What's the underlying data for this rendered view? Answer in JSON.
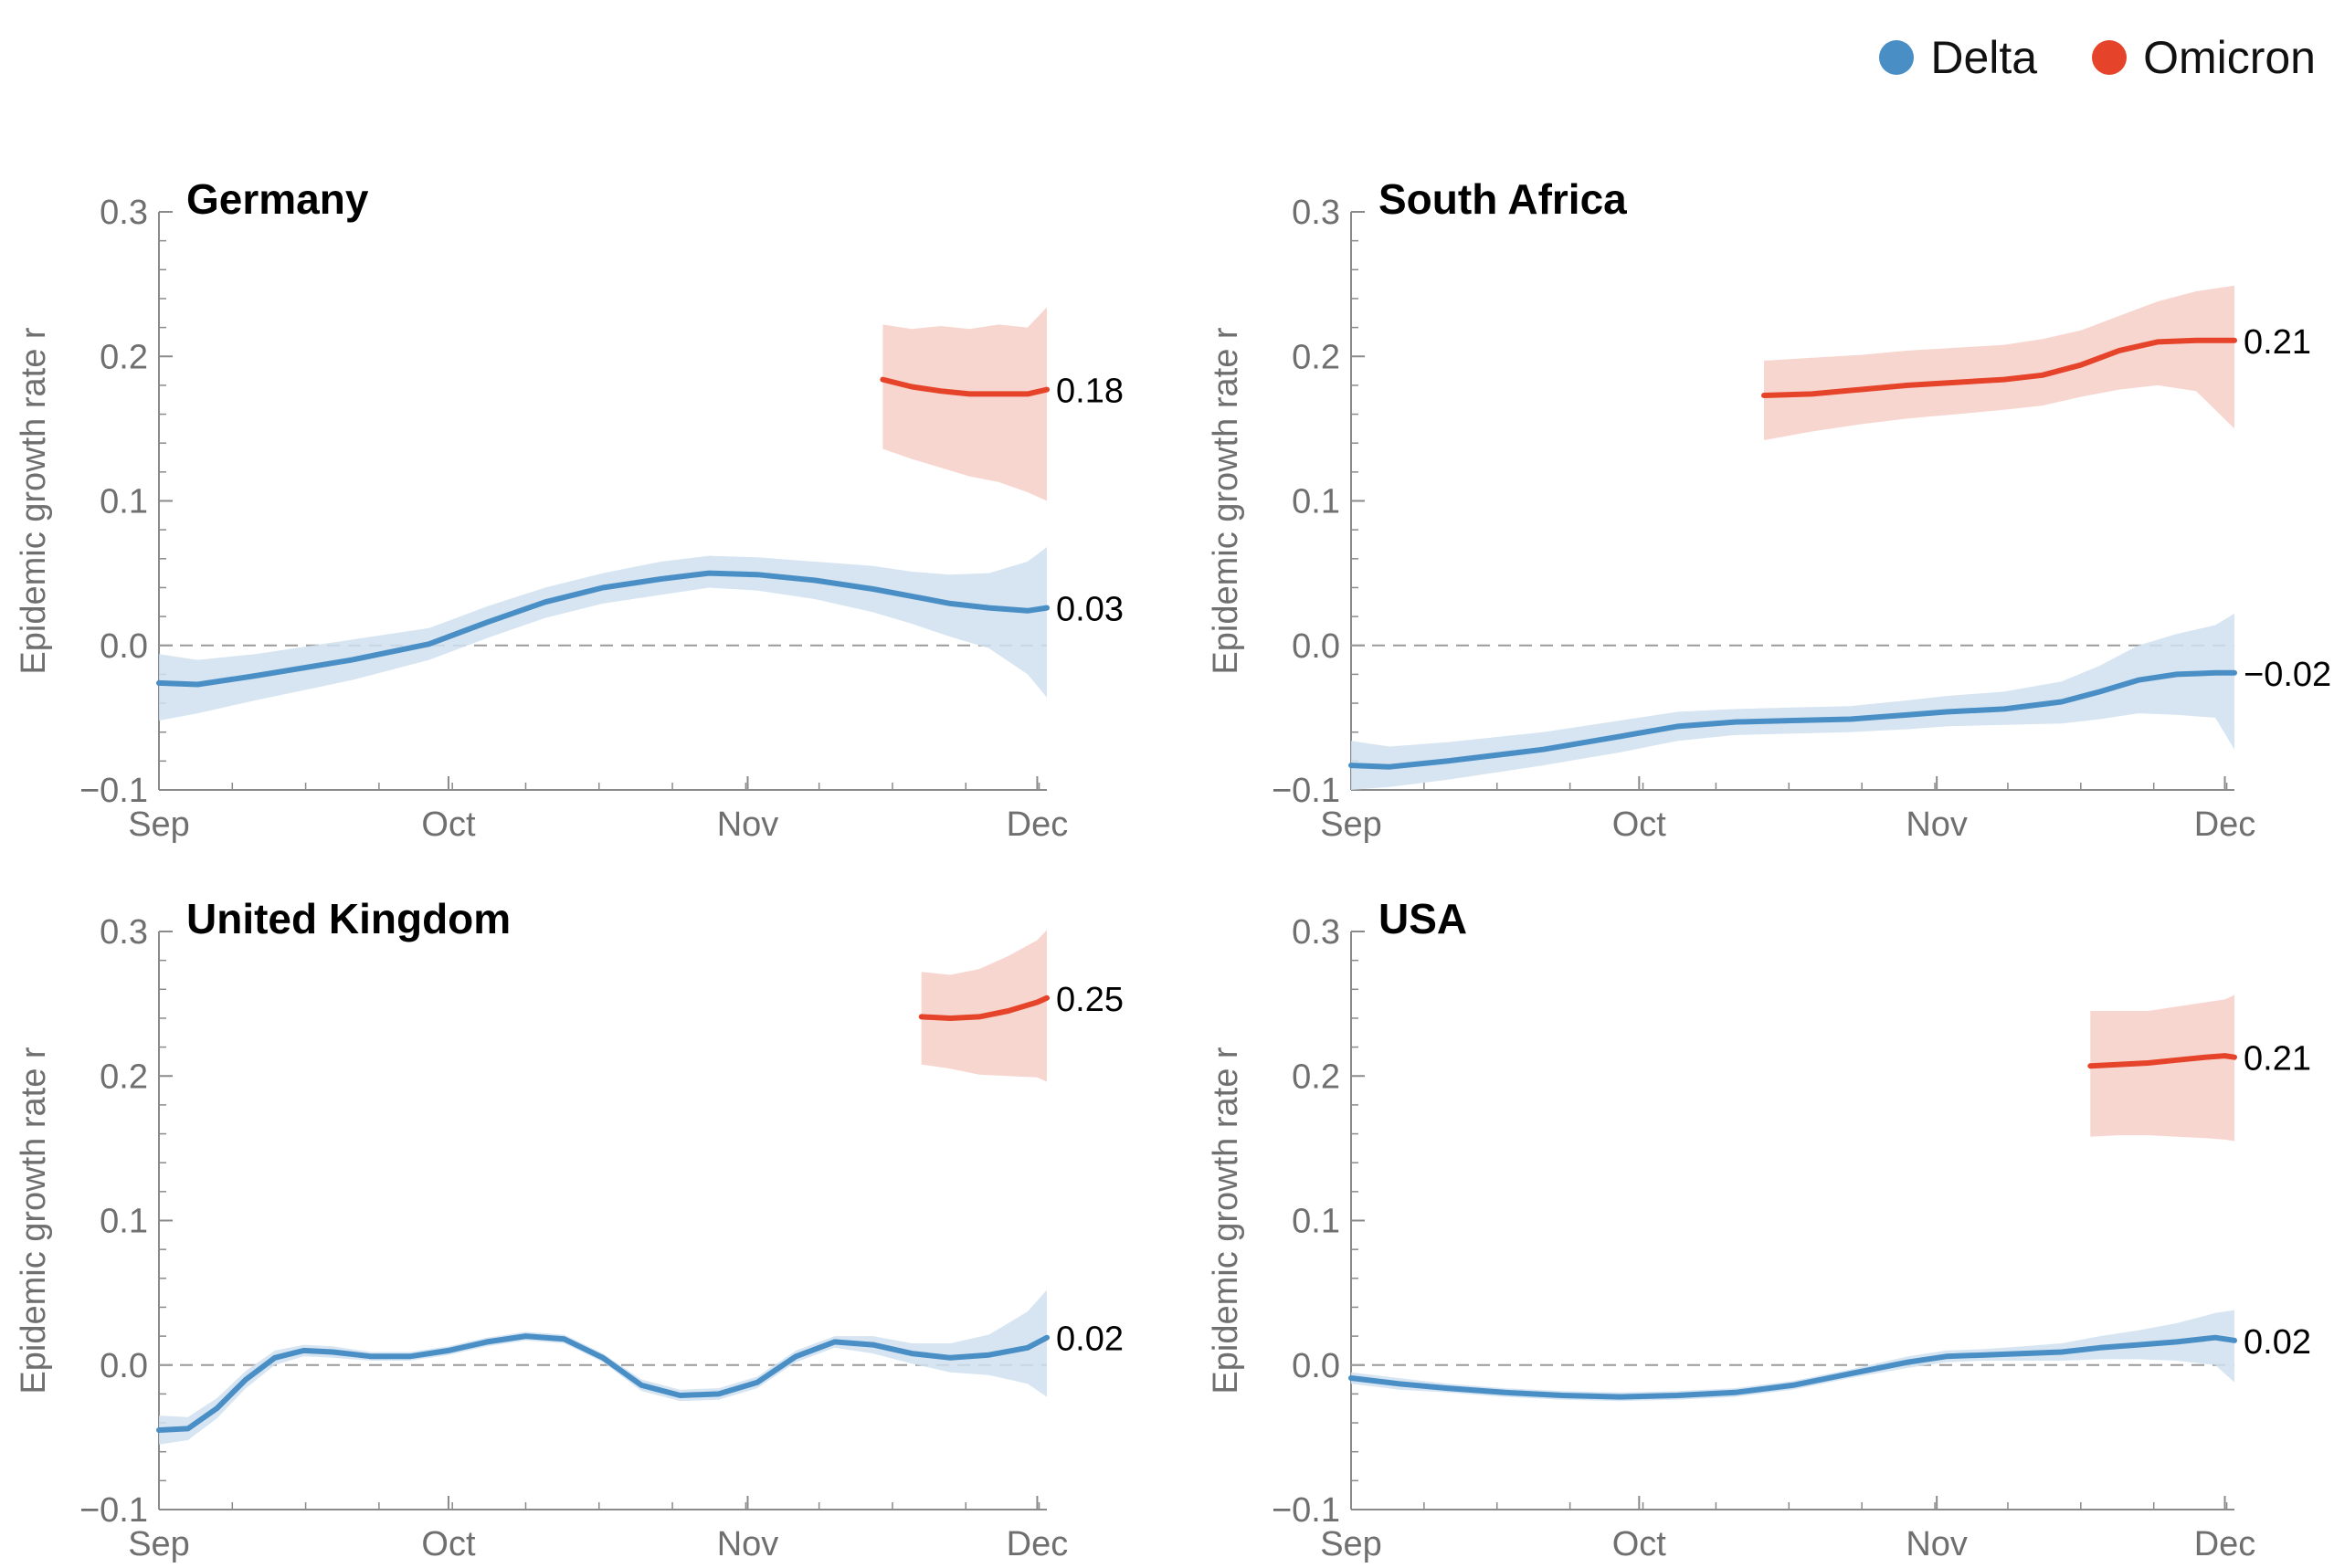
{
  "legend": {
    "items": [
      {
        "label": "Delta",
        "color": "#4a8ec6"
      },
      {
        "label": "Omicron",
        "color": "#e5432a"
      }
    ]
  },
  "chart_data": [
    {
      "type": "line",
      "title": "Germany",
      "xlabel": "",
      "ylabel": "Epidemic growth rate r",
      "x_ticks": [
        "Sep",
        "Oct",
        "Nov",
        "Dec"
      ],
      "x_tick_days": [
        0,
        30,
        61,
        91
      ],
      "xlim": [
        0,
        92
      ],
      "ylim": [
        -0.1,
        0.3
      ],
      "y_ticks": [
        -0.1,
        0.0,
        0.1,
        0.2,
        0.3
      ],
      "y_tick_labels": [
        "−0.1",
        "0.0",
        "0.1",
        "0.2",
        "0.3"
      ],
      "reference_line": 0.0,
      "grid": false,
      "series": [
        {
          "name": "Delta",
          "color": "#4a8ec6",
          "x": [
            0,
            4,
            10,
            20,
            28,
            34,
            40,
            46,
            52,
            57,
            62,
            68,
            74,
            78,
            82,
            86,
            90,
            92
          ],
          "y": [
            -0.026,
            -0.027,
            -0.021,
            -0.01,
            0.001,
            0.016,
            0.03,
            0.04,
            0.046,
            0.05,
            0.049,
            0.045,
            0.039,
            0.034,
            0.029,
            0.026,
            0.024,
            0.026
          ],
          "lower": [
            -0.052,
            -0.047,
            -0.038,
            -0.024,
            -0.01,
            0.005,
            0.019,
            0.029,
            0.035,
            0.04,
            0.038,
            0.032,
            0.023,
            0.015,
            0.006,
            -0.002,
            -0.02,
            -0.036
          ],
          "upper": [
            -0.006,
            -0.01,
            -0.006,
            0.004,
            0.012,
            0.027,
            0.04,
            0.05,
            0.058,
            0.062,
            0.061,
            0.058,
            0.055,
            0.051,
            0.049,
            0.05,
            0.058,
            0.068
          ],
          "end_label": "0.03"
        },
        {
          "name": "Omicron",
          "color": "#e5432a",
          "x": [
            75,
            78,
            81,
            84,
            87,
            90,
            92
          ],
          "y": [
            0.184,
            0.179,
            0.176,
            0.174,
            0.174,
            0.174,
            0.177
          ],
          "lower": [
            0.136,
            0.129,
            0.123,
            0.117,
            0.113,
            0.106,
            0.1
          ],
          "upper": [
            0.222,
            0.219,
            0.221,
            0.219,
            0.222,
            0.22,
            0.234
          ],
          "end_label": "0.18"
        }
      ]
    },
    {
      "type": "line",
      "title": "South Africa",
      "xlabel": "",
      "ylabel": "Epidemic growth rate r",
      "x_ticks": [
        "Sep",
        "Oct",
        "Nov",
        "Dec"
      ],
      "x_tick_days": [
        0,
        30,
        61,
        91
      ],
      "xlim": [
        0,
        92
      ],
      "ylim": [
        -0.1,
        0.3
      ],
      "y_ticks": [
        -0.1,
        0.0,
        0.1,
        0.2,
        0.3
      ],
      "y_tick_labels": [
        "−0.1",
        "0.0",
        "0.1",
        "0.2",
        "0.3"
      ],
      "reference_line": 0.0,
      "grid": false,
      "series": [
        {
          "name": "Delta",
          "color": "#4a8ec6",
          "x": [
            0,
            4,
            10,
            20,
            28,
            34,
            40,
            46,
            52,
            58,
            62,
            68,
            74,
            78,
            82,
            86,
            90,
            92
          ],
          "y": [
            -0.083,
            -0.084,
            -0.08,
            -0.072,
            -0.063,
            -0.056,
            -0.053,
            -0.052,
            -0.051,
            -0.048,
            -0.046,
            -0.044,
            -0.039,
            -0.032,
            -0.024,
            -0.02,
            -0.019,
            -0.019
          ],
          "lower": [
            -0.1,
            -0.098,
            -0.093,
            -0.083,
            -0.074,
            -0.066,
            -0.062,
            -0.061,
            -0.06,
            -0.058,
            -0.056,
            -0.055,
            -0.054,
            -0.051,
            -0.047,
            -0.048,
            -0.05,
            -0.072
          ],
          "upper": [
            -0.066,
            -0.07,
            -0.067,
            -0.06,
            -0.052,
            -0.046,
            -0.044,
            -0.043,
            -0.042,
            -0.038,
            -0.035,
            -0.032,
            -0.025,
            -0.014,
            0.0,
            0.008,
            0.014,
            0.022
          ],
          "end_label": "−0.02"
        },
        {
          "name": "Omicron",
          "color": "#e5432a",
          "x": [
            43,
            48,
            53,
            58,
            63,
            68,
            72,
            76,
            80,
            84,
            88,
            92
          ],
          "y": [
            0.173,
            0.174,
            0.177,
            0.18,
            0.182,
            0.184,
            0.187,
            0.194,
            0.204,
            0.21,
            0.211,
            0.211
          ],
          "lower": [
            0.142,
            0.148,
            0.153,
            0.157,
            0.16,
            0.163,
            0.166,
            0.172,
            0.177,
            0.18,
            0.176,
            0.15
          ],
          "upper": [
            0.197,
            0.199,
            0.201,
            0.204,
            0.206,
            0.208,
            0.212,
            0.218,
            0.228,
            0.238,
            0.245,
            0.249
          ],
          "end_label": "0.21"
        }
      ]
    },
    {
      "type": "line",
      "title": "United Kingdom",
      "xlabel": "",
      "ylabel": "Epidemic growth rate r",
      "x_ticks": [
        "Sep",
        "Oct",
        "Nov",
        "Dec"
      ],
      "x_tick_days": [
        0,
        30,
        61,
        91
      ],
      "xlim": [
        0,
        92
      ],
      "ylim": [
        -0.1,
        0.3
      ],
      "y_ticks": [
        -0.1,
        0.0,
        0.1,
        0.2,
        0.3
      ],
      "y_tick_labels": [
        "−0.1",
        "0.0",
        "0.1",
        "0.2",
        "0.3"
      ],
      "reference_line": 0.0,
      "grid": false,
      "series": [
        {
          "name": "Delta",
          "color": "#4a8ec6",
          "x": [
            0,
            3,
            6,
            9,
            12,
            15,
            18,
            22,
            26,
            30,
            34,
            38,
            42,
            46,
            50,
            54,
            58,
            62,
            66,
            70,
            74,
            78,
            82,
            86,
            90,
            92
          ],
          "y": [
            -0.045,
            -0.044,
            -0.03,
            -0.01,
            0.005,
            0.01,
            0.009,
            0.006,
            0.006,
            0.01,
            0.016,
            0.02,
            0.018,
            0.005,
            -0.014,
            -0.021,
            -0.02,
            -0.012,
            0.006,
            0.016,
            0.014,
            0.008,
            0.005,
            0.007,
            0.012,
            0.019
          ],
          "lower": [
            -0.055,
            -0.052,
            -0.037,
            -0.016,
            0.0,
            0.006,
            0.005,
            0.003,
            0.003,
            0.007,
            0.013,
            0.017,
            0.015,
            0.002,
            -0.018,
            -0.025,
            -0.024,
            -0.016,
            0.002,
            0.012,
            0.008,
            0.001,
            -0.005,
            -0.007,
            -0.013,
            -0.022
          ],
          "upper": [
            -0.035,
            -0.036,
            -0.023,
            -0.004,
            0.01,
            0.014,
            0.013,
            0.009,
            0.009,
            0.013,
            0.019,
            0.023,
            0.021,
            0.008,
            -0.01,
            -0.017,
            -0.016,
            -0.008,
            0.01,
            0.02,
            0.02,
            0.015,
            0.015,
            0.021,
            0.037,
            0.052
          ],
          "end_label": "0.02"
        },
        {
          "name": "Omicron",
          "color": "#e5432a",
          "x": [
            79,
            82,
            85,
            88,
            91,
            92
          ],
          "y": [
            0.241,
            0.24,
            0.241,
            0.245,
            0.251,
            0.254
          ],
          "lower": [
            0.208,
            0.205,
            0.201,
            0.2,
            0.199,
            0.196
          ],
          "upper": [
            0.272,
            0.27,
            0.274,
            0.283,
            0.294,
            0.301
          ],
          "end_label": "0.25"
        }
      ]
    },
    {
      "type": "line",
      "title": "USA",
      "xlabel": "",
      "ylabel": "Epidemic growth rate r",
      "x_ticks": [
        "Sep",
        "Oct",
        "Nov",
        "Dec"
      ],
      "x_tick_days": [
        0,
        30,
        61,
        91
      ],
      "xlim": [
        0,
        92
      ],
      "ylim": [
        -0.1,
        0.3
      ],
      "y_ticks": [
        -0.1,
        0.0,
        0.1,
        0.2,
        0.3
      ],
      "y_tick_labels": [
        "−0.1",
        "0.0",
        "0.1",
        "0.2",
        "0.3"
      ],
      "reference_line": 0.0,
      "grid": false,
      "series": [
        {
          "name": "Delta",
          "color": "#4a8ec6",
          "x": [
            0,
            5,
            10,
            16,
            22,
            28,
            34,
            40,
            46,
            52,
            58,
            62,
            66,
            70,
            74,
            78,
            82,
            86,
            90,
            92
          ],
          "y": [
            -0.009,
            -0.013,
            -0.016,
            -0.019,
            -0.021,
            -0.022,
            -0.021,
            -0.019,
            -0.014,
            -0.006,
            0.002,
            0.006,
            0.007,
            0.008,
            0.009,
            0.012,
            0.014,
            0.016,
            0.019,
            0.017
          ],
          "lower": [
            -0.013,
            -0.017,
            -0.019,
            -0.022,
            -0.024,
            -0.025,
            -0.024,
            -0.022,
            -0.017,
            -0.009,
            -0.002,
            0.002,
            0.003,
            0.003,
            0.003,
            0.004,
            0.004,
            0.003,
            0.0,
            -0.012
          ],
          "upper": [
            -0.005,
            -0.009,
            -0.013,
            -0.016,
            -0.018,
            -0.019,
            -0.018,
            -0.016,
            -0.011,
            -0.003,
            0.006,
            0.01,
            0.011,
            0.013,
            0.015,
            0.02,
            0.024,
            0.029,
            0.036,
            0.038
          ],
          "end_label": "0.02"
        },
        {
          "name": "Omicron",
          "color": "#e5432a",
          "x": [
            77,
            80,
            83,
            86,
            89,
            91,
            92
          ],
          "y": [
            0.207,
            0.208,
            0.209,
            0.211,
            0.213,
            0.214,
            0.213
          ],
          "lower": [
            0.158,
            0.159,
            0.159,
            0.158,
            0.157,
            0.156,
            0.155
          ],
          "upper": [
            0.245,
            0.245,
            0.245,
            0.248,
            0.251,
            0.253,
            0.256
          ],
          "end_label": "0.21"
        }
      ]
    }
  ]
}
